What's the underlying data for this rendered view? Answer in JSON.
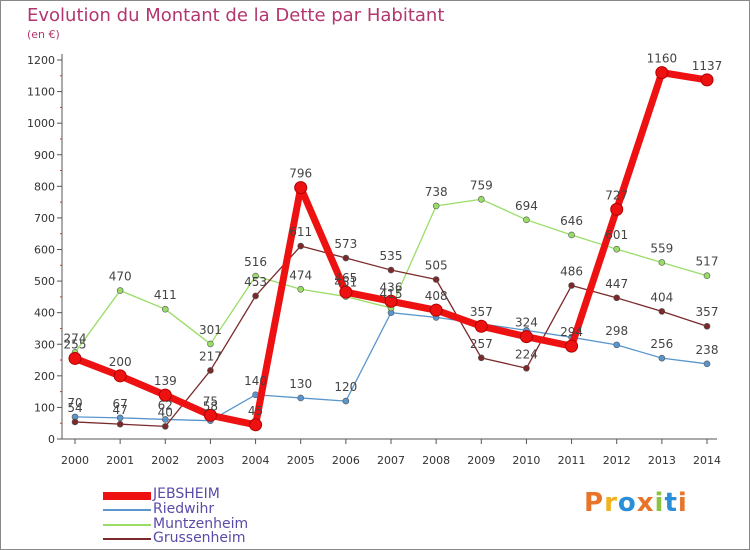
{
  "header": {
    "title": "Evolution du Montant de la Dette par Habitant",
    "subtitle": "(en €)"
  },
  "logo": {
    "text": "Proxiti",
    "colors": [
      "#e8742a",
      "#f2b21f",
      "#2a8fd6",
      "#e8742a",
      "#8bc53f",
      "#2a8fd6",
      "#e8742a"
    ]
  },
  "chart_data": {
    "type": "line",
    "title": "Evolution du Montant de la Dette par Habitant",
    "subtitle": "(en €)",
    "x": [
      "2000",
      "2001",
      "2002",
      "2003",
      "2004",
      "2005",
      "2006",
      "2007",
      "2008",
      "2009",
      "2010",
      "2011",
      "2012",
      "2013",
      "2014"
    ],
    "ylim": [
      0,
      1200
    ],
    "yticks": [
      0,
      100,
      200,
      300,
      400,
      500,
      600,
      700,
      800,
      900,
      1000,
      1100,
      1200
    ],
    "grid": false,
    "legend_position": "bottom-left",
    "series": [
      {
        "name": "JEBSHEIM",
        "color": "#ee1111",
        "style": "bold",
        "values": [
          255,
          200,
          139,
          75,
          45,
          796,
          465,
          436,
          408,
          357,
          324,
          294,
          727,
          1160,
          1137
        ],
        "labels": [
          "255",
          "200",
          "139",
          "75",
          "45",
          "796",
          "465",
          "436",
          "408",
          "357",
          "324",
          "294",
          "727",
          "1160",
          "1137"
        ]
      },
      {
        "name": "Riedwihr",
        "color": "#5a96cd",
        "style": "normal",
        "values": [
          70,
          67,
          62,
          58,
          140,
          130,
          120,
          400,
          385,
          365,
          344,
          322,
          298,
          256,
          238
        ],
        "labels": [
          "70",
          "67",
          "62",
          "58",
          "140",
          "130",
          "120",
          "",
          "",
          "",
          "",
          "",
          "298",
          "256",
          "238"
        ]
      },
      {
        "name": "Muntzenheim",
        "color": "#99dd66",
        "style": "normal",
        "values": [
          274,
          470,
          411,
          301,
          516,
          474,
          451,
          415,
          738,
          759,
          694,
          646,
          601,
          559,
          517
        ],
        "labels": [
          "274",
          "470",
          "411",
          "301",
          "516",
          "474",
          "451",
          "415",
          "738",
          "759",
          "694",
          "646",
          "601",
          "559",
          "517"
        ]
      },
      {
        "name": "Grussenheim",
        "color": "#7a2a2a",
        "style": "normal",
        "values": [
          54,
          47,
          40,
          217,
          453,
          611,
          573,
          535,
          505,
          257,
          224,
          486,
          447,
          404,
          357
        ],
        "labels": [
          "54",
          "47",
          "40",
          "217",
          "453",
          "611",
          "573",
          "535",
          "505",
          "257",
          "224",
          "486",
          "447",
          "404",
          "357"
        ]
      }
    ]
  }
}
